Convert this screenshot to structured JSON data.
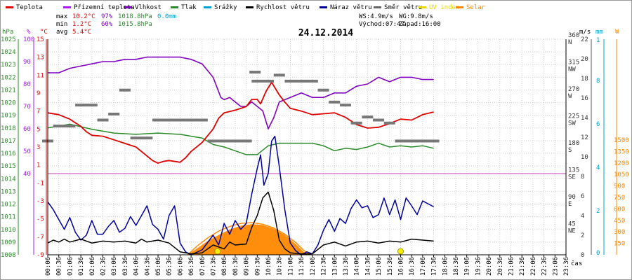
{
  "chart_data": {
    "type": "line",
    "title": "24.12.2014",
    "x_label": "čas",
    "x_ticks": [
      "00:06",
      "00:36",
      "01:06",
      "01:36",
      "02:06",
      "02:36",
      "03:06",
      "03:36",
      "04:06",
      "04:36",
      "05:06",
      "05:36",
      "06:06",
      "06:36",
      "07:06",
      "07:36",
      "08:06",
      "08:36",
      "09:06",
      "09:36",
      "10:06",
      "10:36",
      "11:06",
      "11:36",
      "12:06",
      "12:36",
      "13:06",
      "13:36",
      "14:06",
      "14:36",
      "15:06",
      "15:36",
      "16:06",
      "16:36",
      "17:06",
      "17:36",
      "18:06",
      "18:36",
      "19:06",
      "19:36",
      "20:06",
      "20:36",
      "21:06",
      "21:36",
      "22:06",
      "22:36",
      "23:06",
      "23:36"
    ],
    "legend": [
      {
        "name": "Teplota",
        "color": "#e00000"
      },
      {
        "name": "Přízemní teplota",
        "color": "#a020f0"
      },
      {
        "name": "Vlhkost",
        "color": "#8000c0"
      },
      {
        "name": "Tlak",
        "color": "#2a8a2a"
      },
      {
        "name": "Srážky",
        "color": "#00a0d0"
      },
      {
        "name": "Rychlost větru",
        "color": "#000000"
      },
      {
        "name": "Náraz větru",
        "color": "#0000a0"
      },
      {
        "name": "Směr větru",
        "color": "#666666"
      },
      {
        "name": "UV index",
        "color": "#e6d800"
      },
      {
        "name": "Solar",
        "color": "#ff8800"
      }
    ],
    "stats": {
      "max": {
        "label": "max",
        "temp": "10.2°C",
        "hum": "97%",
        "press": "1018.8hPa",
        "rain": "0.0mm"
      },
      "min": {
        "label": "min",
        "temp": "1.2°C",
        "hum": "60%",
        "press": "1015.8hPa"
      },
      "avg": {
        "label": "avg",
        "temp": "5.4°C"
      },
      "ws": "WS:4.9m/s",
      "wg": "WG:9.8m/s",
      "sunrise": "Východ:07:47",
      "sunset": "Západ:16:00"
    },
    "axes": {
      "pressure": {
        "unit": "hPa",
        "color": "#2a8a2a",
        "range": [
          1008,
          1025
        ],
        "ticks": [
          1025,
          1024,
          1023,
          1022,
          1021,
          1020,
          1019,
          1018,
          1017,
          1016,
          1015,
          1014,
          1013,
          1012,
          1011,
          1010,
          1009,
          1008
        ]
      },
      "humidity": {
        "unit": "%",
        "color": "#a020f0",
        "range": [
          40,
          100
        ],
        "ticks": [
          100,
          90,
          80,
          70,
          60,
          50,
          40
        ]
      },
      "temperature": {
        "unit": "°C",
        "color": "#e00000",
        "range": [
          -9,
          15
        ],
        "ticks": [
          15,
          13,
          11,
          9,
          7,
          5,
          3,
          1,
          -1,
          -3,
          -5,
          -7,
          -9
        ]
      },
      "direction": {
        "unit": "",
        "color": "#333333",
        "ticks": [
          "360",
          "N",
          "315",
          "NW",
          "270",
          "W",
          "225",
          "SW",
          "180",
          "S",
          "135",
          "SE",
          "90",
          "E",
          "45",
          "NE"
        ]
      },
      "wind": {
        "unit": "m/s",
        "color": "#333333",
        "range": [
          0,
          22
        ],
        "ticks": [
          "22",
          "20",
          "18",
          "16",
          "14",
          "12",
          "10",
          "8",
          "6",
          "4",
          "2",
          "0"
        ]
      },
      "uv": {
        "unit": "mm",
        "color": "#00a0d0",
        "ticks": [
          "1",
          "8",
          "6",
          "4",
          "2",
          "0"
        ]
      },
      "solar": {
        "unit": "W",
        "color": "#ff8800",
        "range": [
          0,
          1500
        ],
        "ticks": [
          "1500",
          "1350",
          "1200",
          "1050",
          "900",
          "750",
          "600",
          "450",
          "300",
          "150"
        ]
      }
    },
    "series": {
      "temperature_c": [
        [
          0,
          6.8
        ],
        [
          1,
          6.6
        ],
        [
          2,
          6.1
        ],
        [
          3,
          5.3
        ],
        [
          3.5,
          4.7
        ],
        [
          4,
          4.3
        ],
        [
          5,
          4.2
        ],
        [
          6,
          3.8
        ],
        [
          7,
          3.4
        ],
        [
          8,
          3.0
        ],
        [
          8.5,
          2.5
        ],
        [
          9,
          2.0
        ],
        [
          9.5,
          1.5
        ],
        [
          10,
          1.2
        ],
        [
          10.5,
          1.4
        ],
        [
          11,
          1.5
        ],
        [
          12,
          1.3
        ],
        [
          12.5,
          1.8
        ],
        [
          13,
          2.5
        ],
        [
          14,
          3.5
        ],
        [
          15,
          5.0
        ],
        [
          15.5,
          6.2
        ],
        [
          16,
          6.8
        ],
        [
          17,
          7.1
        ],
        [
          18,
          7.5
        ],
        [
          18.5,
          8.3
        ],
        [
          19,
          8.3
        ],
        [
          19.3,
          7.8
        ],
        [
          19.8,
          9.2
        ],
        [
          20.3,
          10.2
        ],
        [
          21,
          8.8
        ],
        [
          21.5,
          8.0
        ],
        [
          22,
          7.3
        ],
        [
          23,
          7.0
        ],
        [
          24,
          6.6
        ],
        [
          25,
          6.7
        ],
        [
          26,
          6.8
        ],
        [
          27,
          6.3
        ],
        [
          28,
          5.5
        ],
        [
          29,
          5.1
        ],
        [
          30,
          5.2
        ],
        [
          31,
          5.6
        ],
        [
          32,
          6.1
        ],
        [
          33,
          6.0
        ],
        [
          34,
          6.6
        ],
        [
          35,
          6.9
        ]
      ],
      "humidity_pct": [
        [
          0,
          85
        ],
        [
          1,
          85
        ],
        [
          2,
          87
        ],
        [
          3,
          88
        ],
        [
          4,
          89
        ],
        [
          5,
          90
        ],
        [
          6,
          90
        ],
        [
          7,
          91
        ],
        [
          8,
          91
        ],
        [
          9,
          92
        ],
        [
          10,
          92
        ],
        [
          11,
          92
        ],
        [
          12,
          92
        ],
        [
          13,
          91
        ],
        [
          14,
          89
        ],
        [
          15,
          83
        ],
        [
          15.7,
          74
        ],
        [
          16,
          73
        ],
        [
          16.5,
          74
        ],
        [
          17,
          72
        ],
        [
          17.5,
          70
        ],
        [
          18,
          70
        ],
        [
          18.5,
          72
        ],
        [
          19,
          70
        ],
        [
          19.5,
          68
        ],
        [
          20,
          60
        ],
        [
          20.5,
          65
        ],
        [
          21,
          72
        ],
        [
          22,
          74
        ],
        [
          23,
          76
        ],
        [
          24,
          74
        ],
        [
          25,
          74
        ],
        [
          26,
          76
        ],
        [
          27,
          76
        ],
        [
          28,
          79
        ],
        [
          29,
          80
        ],
        [
          30,
          83
        ],
        [
          31,
          81
        ],
        [
          32,
          83
        ],
        [
          33,
          83
        ],
        [
          34,
          82
        ],
        [
          35,
          82
        ]
      ],
      "pressure_hpa": [
        [
          0,
          1018.0
        ],
        [
          2,
          1018.3
        ],
        [
          4,
          1017.9
        ],
        [
          6,
          1017.6
        ],
        [
          8,
          1017.5
        ],
        [
          10,
          1017.6
        ],
        [
          12,
          1017.5
        ],
        [
          14,
          1017.2
        ],
        [
          15,
          1016.7
        ],
        [
          16,
          1016.5
        ],
        [
          17,
          1016.2
        ],
        [
          18,
          1015.9
        ],
        [
          19,
          1015.9
        ],
        [
          20,
          1016.6
        ],
        [
          21,
          1016.8
        ],
        [
          22,
          1016.8
        ],
        [
          23,
          1016.8
        ],
        [
          24,
          1016.8
        ],
        [
          25,
          1016.6
        ],
        [
          26,
          1016.2
        ],
        [
          27,
          1016.4
        ],
        [
          28,
          1016.3
        ],
        [
          29,
          1016.5
        ],
        [
          30,
          1016.8
        ],
        [
          31,
          1016.5
        ],
        [
          32,
          1016.6
        ],
        [
          33,
          1016.5
        ],
        [
          34,
          1016.6
        ],
        [
          35,
          1016.4
        ]
      ],
      "wind_speed_ms": [
        [
          0,
          1.2
        ],
        [
          0.5,
          1.5
        ],
        [
          1,
          1.3
        ],
        [
          1.5,
          1.6
        ],
        [
          2,
          1.3
        ],
        [
          3,
          1.6
        ],
        [
          4,
          1.2
        ],
        [
          5,
          1.4
        ],
        [
          6,
          1.3
        ],
        [
          7,
          1.4
        ],
        [
          8,
          1.2
        ],
        [
          8.5,
          1.6
        ],
        [
          9,
          1.3
        ],
        [
          10,
          1.5
        ],
        [
          11,
          1.2
        ],
        [
          12,
          0.3
        ],
        [
          13,
          0.1
        ],
        [
          14,
          0.2
        ],
        [
          15,
          1.0
        ],
        [
          16,
          0.6
        ],
        [
          16.5,
          1.3
        ],
        [
          17,
          1.0
        ],
        [
          18,
          1.1
        ],
        [
          18.5,
          2.8
        ],
        [
          19,
          4.0
        ],
        [
          19.5,
          5.8
        ],
        [
          20,
          6.4
        ],
        [
          20.5,
          4.5
        ],
        [
          21,
          1.5
        ],
        [
          21.5,
          0.6
        ],
        [
          22,
          0.2
        ],
        [
          23,
          0.1
        ],
        [
          24,
          0.1
        ],
        [
          25,
          1.0
        ],
        [
          26,
          1.3
        ],
        [
          27,
          0.9
        ],
        [
          28,
          1.3
        ],
        [
          29,
          1.4
        ],
        [
          30,
          1.2
        ],
        [
          31,
          1.4
        ],
        [
          32,
          1.3
        ],
        [
          33,
          1.6
        ],
        [
          34,
          1.5
        ],
        [
          35,
          1.4
        ]
      ],
      "wind_gust_ms": [
        [
          0,
          5.4
        ],
        [
          0.5,
          4.6
        ],
        [
          1,
          3.6
        ],
        [
          1.5,
          2.6
        ],
        [
          2,
          3.8
        ],
        [
          2.5,
          2.3
        ],
        [
          3,
          1.5
        ],
        [
          3.5,
          2.0
        ],
        [
          4,
          3.5
        ],
        [
          4.5,
          2.1
        ],
        [
          5,
          2.1
        ],
        [
          5.5,
          2.9
        ],
        [
          6,
          3.5
        ],
        [
          6.5,
          2.3
        ],
        [
          7,
          2.7
        ],
        [
          7.5,
          3.9
        ],
        [
          8,
          3.0
        ],
        [
          8.5,
          4.0
        ],
        [
          9,
          5.0
        ],
        [
          9.5,
          3.1
        ],
        [
          10,
          2.6
        ],
        [
          10.5,
          1.6
        ],
        [
          11,
          4.0
        ],
        [
          11.5,
          5.0
        ],
        [
          12,
          1.2
        ],
        [
          12.5,
          0.3
        ],
        [
          13,
          0.0
        ],
        [
          14,
          0.5
        ],
        [
          15,
          2.0
        ],
        [
          15.5,
          1.0
        ],
        [
          16,
          3.2
        ],
        [
          16.5,
          2.1
        ],
        [
          17,
          3.5
        ],
        [
          17.5,
          2.6
        ],
        [
          18,
          3.2
        ],
        [
          18.5,
          6.2
        ],
        [
          19,
          8.8
        ],
        [
          19.3,
          10.2
        ],
        [
          19.6,
          7.1
        ],
        [
          20,
          8.3
        ],
        [
          20.3,
          11.6
        ],
        [
          20.6,
          12.1
        ],
        [
          21,
          9.0
        ],
        [
          21.5,
          4.6
        ],
        [
          22,
          1.2
        ],
        [
          22.5,
          0.4
        ],
        [
          23,
          0.0
        ],
        [
          23.5,
          0.3
        ],
        [
          24,
          0.1
        ],
        [
          24.5,
          1.0
        ],
        [
          25,
          2.5
        ],
        [
          25.5,
          3.6
        ],
        [
          26,
          2.4
        ],
        [
          26.5,
          3.7
        ],
        [
          27,
          3.2
        ],
        [
          27.5,
          4.7
        ],
        [
          28,
          5.6
        ],
        [
          28.5,
          4.8
        ],
        [
          29,
          5.0
        ],
        [
          29.5,
          3.8
        ],
        [
          30,
          4.1
        ],
        [
          30.5,
          5.8
        ],
        [
          31,
          4.1
        ],
        [
          31.5,
          5.6
        ],
        [
          32,
          3.6
        ],
        [
          32.5,
          5.8
        ],
        [
          33,
          5.0
        ],
        [
          33.5,
          4.1
        ],
        [
          34,
          5.5
        ],
        [
          34.5,
          5.2
        ],
        [
          35,
          4.9
        ]
      ],
      "solar_wm2": [
        [
          12.7,
          0
        ],
        [
          13.5,
          80
        ],
        [
          14.5,
          180
        ],
        [
          15.5,
          260
        ],
        [
          16.5,
          330
        ],
        [
          17.5,
          380
        ],
        [
          18.5,
          400
        ],
        [
          19.5,
          390
        ],
        [
          20.5,
          340
        ],
        [
          21.5,
          260
        ],
        [
          22.5,
          140
        ],
        [
          23.2,
          40
        ],
        [
          23.8,
          0
        ]
      ],
      "solar_max_wm2": [
        [
          12.7,
          0
        ],
        [
          13.5,
          110
        ],
        [
          14.5,
          220
        ],
        [
          15.5,
          310
        ],
        [
          16.5,
          370
        ],
        [
          17.5,
          410
        ],
        [
          18.5,
          420
        ],
        [
          19.5,
          400
        ],
        [
          20.5,
          350
        ],
        [
          21.5,
          270
        ],
        [
          22.5,
          160
        ],
        [
          23.2,
          60
        ],
        [
          23.8,
          0
        ]
      ],
      "wind_dir_deg": [
        [
          0,
          190
        ],
        [
          1,
          215
        ],
        [
          2,
          215
        ],
        [
          3,
          250
        ],
        [
          4,
          250
        ],
        [
          5,
          225
        ],
        [
          6,
          235
        ],
        [
          7,
          275
        ],
        [
          8,
          195
        ],
        [
          9,
          195
        ],
        [
          10,
          225
        ],
        [
          11,
          225
        ],
        [
          12,
          225
        ],
        [
          13,
          225
        ],
        [
          14,
          225
        ],
        [
          15,
          190
        ],
        [
          16,
          190
        ],
        [
          17,
          190
        ],
        [
          18,
          190
        ],
        [
          18.8,
          305
        ],
        [
          19,
          290
        ],
        [
          20,
          290
        ],
        [
          21,
          300
        ],
        [
          22,
          290
        ],
        [
          23,
          290
        ],
        [
          24,
          290
        ],
        [
          25,
          275
        ],
        [
          26,
          255
        ],
        [
          27,
          250
        ],
        [
          28,
          220
        ],
        [
          29,
          230
        ],
        [
          30,
          225
        ],
        [
          31,
          220
        ],
        [
          32,
          190
        ],
        [
          33,
          190
        ],
        [
          34,
          190
        ],
        [
          35,
          190
        ]
      ]
    }
  }
}
